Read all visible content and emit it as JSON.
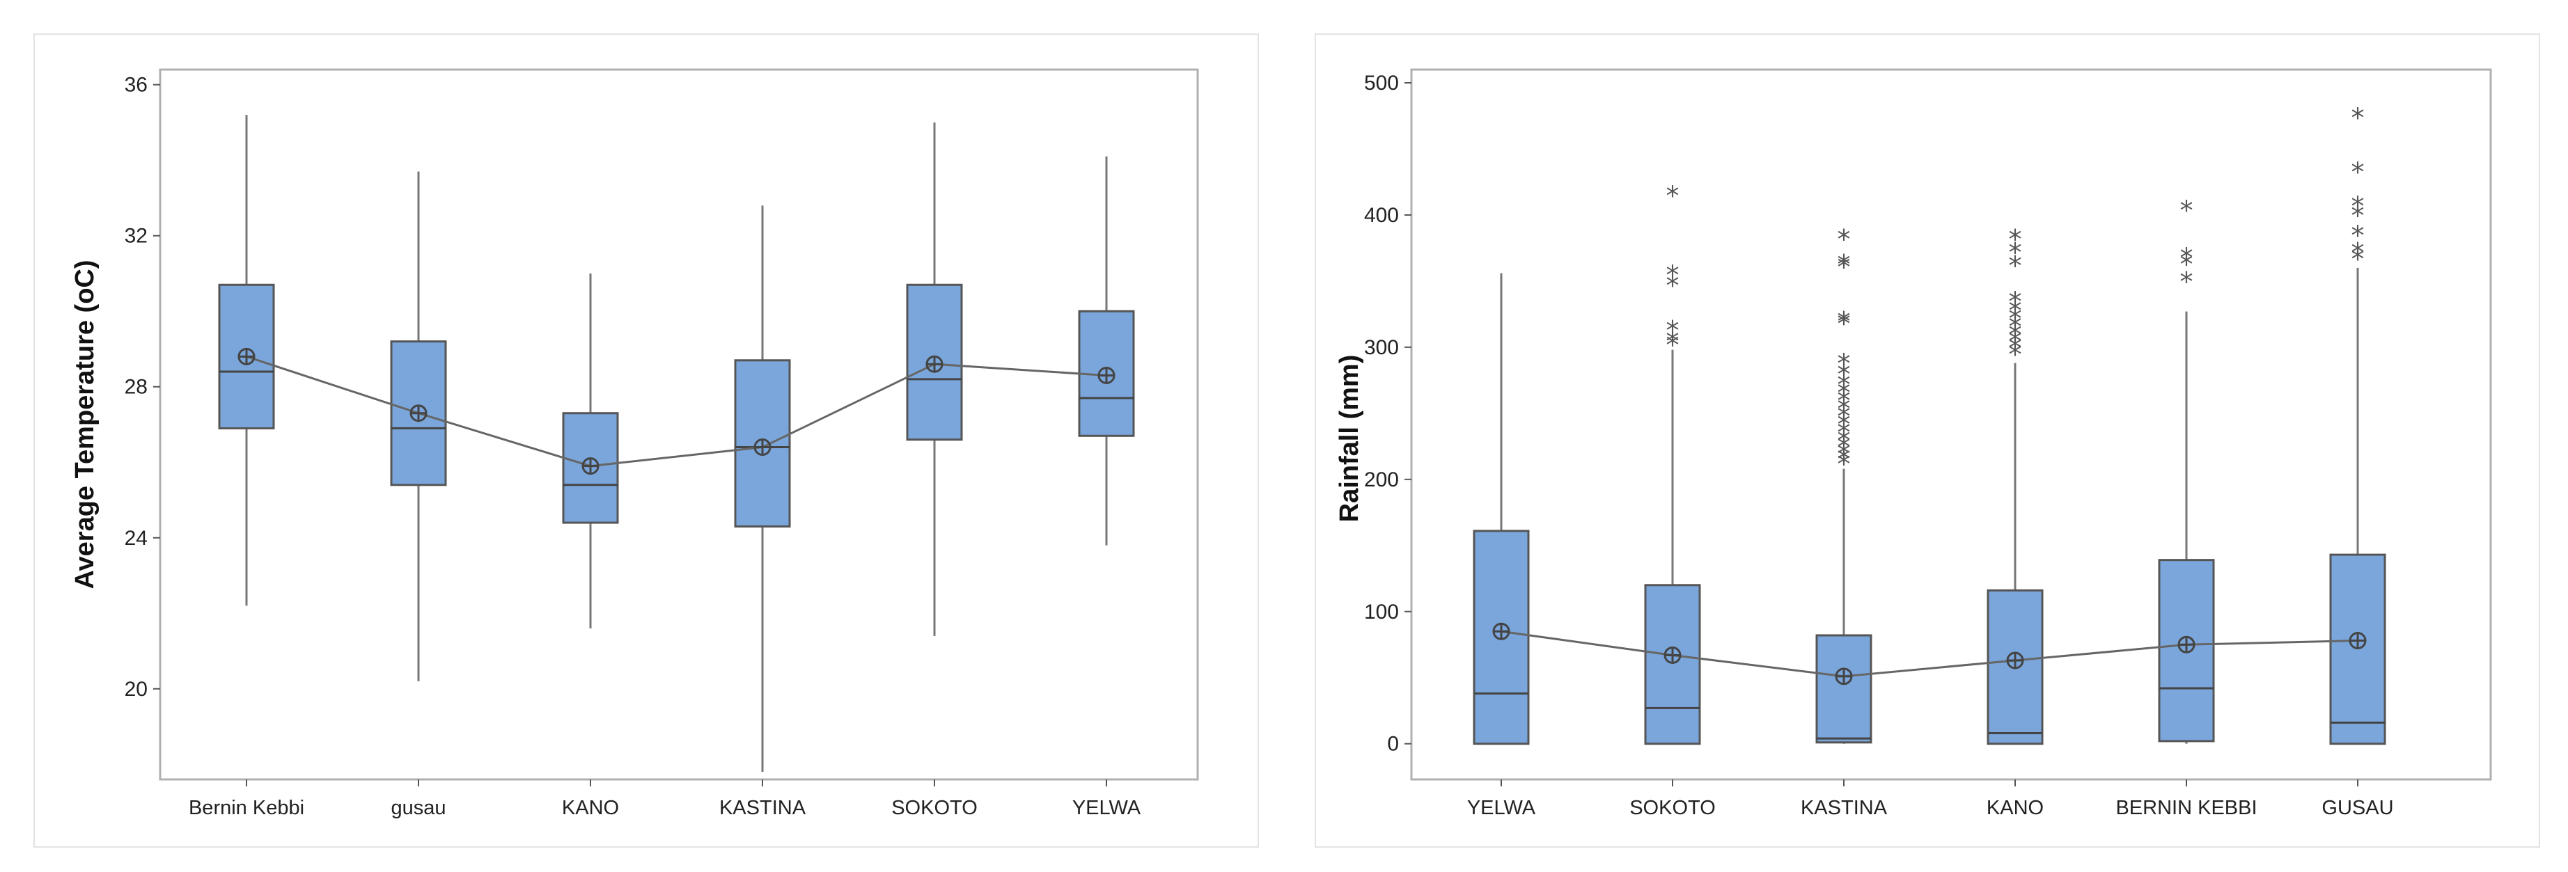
{
  "chart_data": [
    {
      "type": "box",
      "id": "temperature",
      "title": "",
      "xlabel": "",
      "ylabel": "Average Temperature (oC)",
      "ylim": [
        17.6,
        36.4
      ],
      "yticks": [
        20,
        24,
        28,
        32,
        36
      ],
      "categories": [
        "Bernin Kebbi",
        "gusau",
        "KANO",
        "KASTINA",
        "SOKOTO",
        "YELWA"
      ],
      "boxes": [
        {
          "min": 22.2,
          "q1": 26.9,
          "median": 28.4,
          "q3": 30.7,
          "max": 35.2,
          "mean": 28.8,
          "outliers": []
        },
        {
          "min": 20.2,
          "q1": 25.4,
          "median": 26.9,
          "q3": 29.2,
          "max": 33.7,
          "mean": 27.3,
          "outliers": []
        },
        {
          "min": 21.6,
          "q1": 24.4,
          "median": 25.4,
          "q3": 27.3,
          "max": 31.0,
          "mean": 25.9,
          "outliers": []
        },
        {
          "min": 17.8,
          "q1": 24.3,
          "median": 26.4,
          "q3": 28.7,
          "max": 32.8,
          "mean": 26.4,
          "outliers": []
        },
        {
          "min": 21.4,
          "q1": 26.6,
          "median": 28.2,
          "q3": 30.7,
          "max": 35.0,
          "mean": 28.6,
          "outliers": []
        },
        {
          "min": 23.8,
          "q1": 26.7,
          "median": 27.7,
          "q3": 30.0,
          "max": 34.1,
          "mean": 28.3,
          "outliers": []
        }
      ],
      "mean_connect_line": true,
      "colors": {
        "box": "#7aa6dc",
        "stroke": "#555555"
      }
    },
    {
      "type": "box",
      "id": "rainfall",
      "title": "",
      "xlabel": "",
      "ylabel": "Rainfall (mm)",
      "ylim": [
        -27,
        510
      ],
      "yticks": [
        0,
        100,
        200,
        300,
        400,
        500
      ],
      "categories": [
        "YELWA",
        "SOKOTO",
        "KASTINA",
        "KANO",
        "BERNIN KEBBI",
        "GUSAU"
      ],
      "boxes": [
        {
          "min": 0,
          "q1": 0,
          "median": 38,
          "q3": 161,
          "max": 356,
          "mean": 85,
          "outliers": []
        },
        {
          "min": 0,
          "q1": 0,
          "median": 27,
          "q3": 120,
          "max": 298,
          "mean": 67,
          "outliers": [
            302,
            305,
            313,
            347,
            355,
            415
          ]
        },
        {
          "min": 0,
          "q1": 1,
          "median": 4,
          "q3": 82,
          "max": 208,
          "mean": 51,
          "outliers": [
            212,
            216,
            220,
            225,
            230,
            236,
            242,
            248,
            254,
            260,
            266,
            272,
            280,
            288,
            318,
            320,
            361,
            363,
            382
          ]
        },
        {
          "min": 0,
          "q1": 0,
          "median": 8,
          "q3": 116,
          "max": 288,
          "mean": 63,
          "outliers": [
            295,
            300,
            305,
            310,
            316,
            322,
            328,
            335,
            362,
            372,
            382
          ]
        },
        {
          "min": 0,
          "q1": 2,
          "median": 42,
          "q3": 139,
          "max": 327,
          "mean": 75,
          "outliers": [
            350,
            363,
            368,
            404
          ]
        },
        {
          "min": 0,
          "q1": 0,
          "median": 16,
          "q3": 143,
          "max": 360,
          "mean": 78,
          "outliers": [
            367,
            372,
            385,
            400,
            407,
            433,
            474
          ]
        }
      ],
      "mean_connect_line": true,
      "colors": {
        "box": "#7aa6dc",
        "stroke": "#555555"
      }
    }
  ]
}
